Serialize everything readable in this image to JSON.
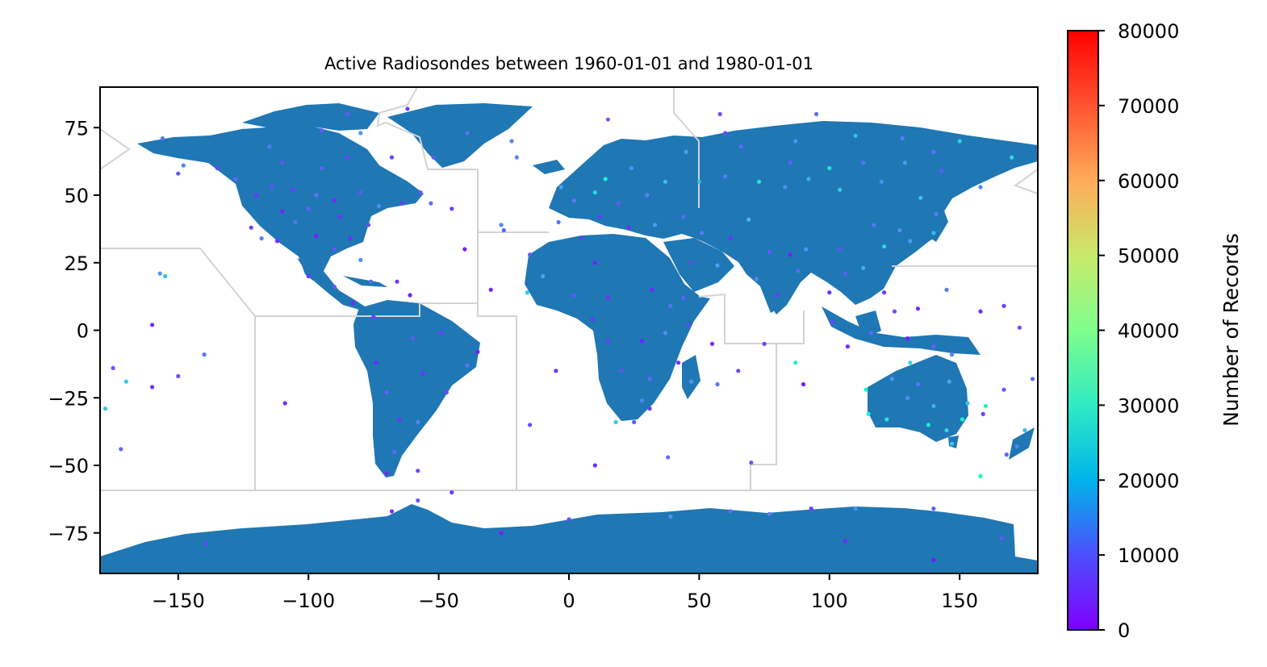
{
  "chart_data": {
    "type": "scatter",
    "title": "Active Radiosondes between 1960-01-01 and 1980-01-01",
    "xlabel": "",
    "ylabel": "",
    "xlim": [
      -180,
      180
    ],
    "ylim": [
      -90,
      90
    ],
    "xticks": [
      -150,
      -100,
      -50,
      0,
      50,
      100,
      150
    ],
    "xtick_labels": [
      "−150",
      "−100",
      "−50",
      "0",
      "50",
      "100",
      "150"
    ],
    "yticks": [
      75,
      50,
      25,
      0,
      -25,
      -50,
      -75
    ],
    "ytick_labels": [
      "75",
      "50",
      "25",
      "0",
      "−25",
      "−50",
      "−75"
    ],
    "grid": false,
    "basemap": "world land polygons (blue fill) with light grey region boundaries",
    "colorbar": {
      "label": "Number of Records",
      "colormap": "rainbow",
      "range": [
        0,
        80000
      ],
      "ticks": [
        0,
        10000,
        20000,
        30000,
        40000,
        50000,
        60000,
        70000,
        80000
      ],
      "tick_labels": [
        "0",
        "10000",
        "20000",
        "30000",
        "40000",
        "50000",
        "60000",
        "70000",
        "80000"
      ]
    },
    "colors": {
      "land": "#1f77b4",
      "boundaries": "#d3d3d3",
      "low": "#7f00ff",
      "mid": "#00b4eb",
      "high": "#ff0000"
    },
    "points": [
      {
        "x": -150,
        "y": 58,
        "v": 9000
      },
      {
        "x": -148,
        "y": 61,
        "v": 14000
      },
      {
        "x": -156,
        "y": 71,
        "v": 12000
      },
      {
        "x": -135,
        "y": 60,
        "v": 7000
      },
      {
        "x": -128,
        "y": 56,
        "v": 11000
      },
      {
        "x": -120,
        "y": 50,
        "v": 5000
      },
      {
        "x": -114,
        "y": 53,
        "v": 8000
      },
      {
        "x": -106,
        "y": 52,
        "v": 6000
      },
      {
        "x": -97,
        "y": 50,
        "v": 12000
      },
      {
        "x": -90,
        "y": 48,
        "v": 4000
      },
      {
        "x": -80,
        "y": 51,
        "v": 9000
      },
      {
        "x": -73,
        "y": 46,
        "v": 15000
      },
      {
        "x": -64,
        "y": 47,
        "v": 6000
      },
      {
        "x": -53,
        "y": 47,
        "v": 11000
      },
      {
        "x": -95,
        "y": 60,
        "v": 10000
      },
      {
        "x": -85,
        "y": 64,
        "v": 7000
      },
      {
        "x": -110,
        "y": 62,
        "v": 8500
      },
      {
        "x": -115,
        "y": 68,
        "v": 13000
      },
      {
        "x": -95,
        "y": 74,
        "v": 9000
      },
      {
        "x": -80,
        "y": 73,
        "v": 16000
      },
      {
        "x": -68,
        "y": 64,
        "v": 7000
      },
      {
        "x": -122,
        "y": 38,
        "v": 6000
      },
      {
        "x": -118,
        "y": 34,
        "v": 14000
      },
      {
        "x": -112,
        "y": 33,
        "v": 5000
      },
      {
        "x": -105,
        "y": 40,
        "v": 12000
      },
      {
        "x": -97,
        "y": 35,
        "v": 3000
      },
      {
        "x": -90,
        "y": 30,
        "v": 9000
      },
      {
        "x": -84,
        "y": 34,
        "v": 4000
      },
      {
        "x": -80,
        "y": 26,
        "v": 15000
      },
      {
        "x": -77,
        "y": 39,
        "v": 8000
      },
      {
        "x": -88,
        "y": 42,
        "v": 5000
      },
      {
        "x": -100,
        "y": 45,
        "v": 10000
      },
      {
        "x": -110,
        "y": 44,
        "v": 3500
      },
      {
        "x": -100,
        "y": 20,
        "v": 6000
      },
      {
        "x": -90,
        "y": 16,
        "v": 9000
      },
      {
        "x": -83,
        "y": 10,
        "v": 4000
      },
      {
        "x": -76,
        "y": 18,
        "v": 11000
      },
      {
        "x": -66,
        "y": 18,
        "v": 6000
      },
      {
        "x": -61,
        "y": 13,
        "v": 3000
      },
      {
        "x": -155,
        "y": 20,
        "v": 21000
      },
      {
        "x": -157,
        "y": 21,
        "v": 16000
      },
      {
        "x": -175,
        "y": -14,
        "v": 9000
      },
      {
        "x": -170,
        "y": -19,
        "v": 22000
      },
      {
        "x": -160,
        "y": -21,
        "v": 5000
      },
      {
        "x": -150,
        "y": -17,
        "v": 8000
      },
      {
        "x": -140,
        "y": -9,
        "v": 12000
      },
      {
        "x": -160,
        "y": 2,
        "v": 4000
      },
      {
        "x": -172,
        "y": -44,
        "v": 11000
      },
      {
        "x": -178,
        "y": -29,
        "v": 23000
      },
      {
        "x": -109,
        "y": -27,
        "v": 4000
      },
      {
        "x": -57,
        "y": 51,
        "v": 9000
      },
      {
        "x": -75,
        "y": 5,
        "v": 6000
      },
      {
        "x": -74,
        "y": -12,
        "v": 4000
      },
      {
        "x": -70,
        "y": -23,
        "v": 10000
      },
      {
        "x": -65,
        "y": -33,
        "v": 5000
      },
      {
        "x": -58,
        "y": -34,
        "v": 14000
      },
      {
        "x": -47,
        "y": -23,
        "v": 8000
      },
      {
        "x": -39,
        "y": -13,
        "v": 12000
      },
      {
        "x": -35,
        "y": -8,
        "v": 3000
      },
      {
        "x": -49,
        "y": -1,
        "v": 6000
      },
      {
        "x": -60,
        "y": -3,
        "v": 9000
      },
      {
        "x": -56,
        "y": -16,
        "v": 5000
      },
      {
        "x": -67,
        "y": -45,
        "v": 11000
      },
      {
        "x": -70,
        "y": -53,
        "v": 4000
      },
      {
        "x": -58,
        "y": -52,
        "v": 7000
      },
      {
        "x": -45,
        "y": -60,
        "v": 6000
      },
      {
        "x": -20,
        "y": 64,
        "v": 14000
      },
      {
        "x": -15,
        "y": 28,
        "v": 9000
      },
      {
        "x": -25,
        "y": 37,
        "v": 10000
      },
      {
        "x": -3,
        "y": 53,
        "v": 18000
      },
      {
        "x": 2,
        "y": 48,
        "v": 13000
      },
      {
        "x": 10,
        "y": 51,
        "v": 25000
      },
      {
        "x": 14,
        "y": 56,
        "v": 31000
      },
      {
        "x": 24,
        "y": 60,
        "v": 16000
      },
      {
        "x": 37,
        "y": 55,
        "v": 22000
      },
      {
        "x": 30,
        "y": 50,
        "v": 14000
      },
      {
        "x": 19,
        "y": 47,
        "v": 9000
      },
      {
        "x": 12,
        "y": 42,
        "v": 6000
      },
      {
        "x": -4,
        "y": 40,
        "v": 12000
      },
      {
        "x": 23,
        "y": 38,
        "v": 4000
      },
      {
        "x": 33,
        "y": 39,
        "v": 17000
      },
      {
        "x": 44,
        "y": 42,
        "v": 11000
      },
      {
        "x": 50,
        "y": 55,
        "v": 20000
      },
      {
        "x": 60,
        "y": 57,
        "v": 13000
      },
      {
        "x": 73,
        "y": 55,
        "v": 28000
      },
      {
        "x": 83,
        "y": 53,
        "v": 15000
      },
      {
        "x": 92,
        "y": 56,
        "v": 19000
      },
      {
        "x": 104,
        "y": 52,
        "v": 24000
      },
      {
        "x": 113,
        "y": 62,
        "v": 12000
      },
      {
        "x": 129,
        "y": 62,
        "v": 17000
      },
      {
        "x": 135,
        "y": 49,
        "v": 22000
      },
      {
        "x": 143,
        "y": 59,
        "v": 9000
      },
      {
        "x": 158,
        "y": 53,
        "v": 14000
      },
      {
        "x": 170,
        "y": 64,
        "v": 26000
      },
      {
        "x": 66,
        "y": 68,
        "v": 11000
      },
      {
        "x": 87,
        "y": 70,
        "v": 16000
      },
      {
        "x": 110,
        "y": 72,
        "v": 21000
      },
      {
        "x": 128,
        "y": 71,
        "v": 13000
      },
      {
        "x": 150,
        "y": 70,
        "v": 24000
      },
      {
        "x": 60,
        "y": 73,
        "v": 8000
      },
      {
        "x": 45,
        "y": 66,
        "v": 18000
      },
      {
        "x": 85,
        "y": 62,
        "v": 10000
      },
      {
        "x": 100,
        "y": 60,
        "v": 27000
      },
      {
        "x": 120,
        "y": 55,
        "v": 15000
      },
      {
        "x": 140,
        "y": 66,
        "v": 12000
      },
      {
        "x": 5,
        "y": 34,
        "v": 6000
      },
      {
        "x": 10,
        "y": 25,
        "v": 3000
      },
      {
        "x": -10,
        "y": 20,
        "v": 18000
      },
      {
        "x": -16,
        "y": 14,
        "v": 24000
      },
      {
        "x": 2,
        "y": 13,
        "v": 9000
      },
      {
        "x": 15,
        "y": 12,
        "v": 5000
      },
      {
        "x": 32,
        "y": 15,
        "v": 4000
      },
      {
        "x": 39,
        "y": 9,
        "v": 12000
      },
      {
        "x": 46,
        "y": 2,
        "v": 7000
      },
      {
        "x": 37,
        "y": -1,
        "v": 15000
      },
      {
        "x": 28,
        "y": -4,
        "v": 3000
      },
      {
        "x": 15,
        "y": -4,
        "v": 6000
      },
      {
        "x": 9,
        "y": 4,
        "v": 5000
      },
      {
        "x": 20,
        "y": -15,
        "v": 8000
      },
      {
        "x": 31,
        "y": -18,
        "v": 11000
      },
      {
        "x": 28,
        "y": -26,
        "v": 14000
      },
      {
        "x": 18,
        "y": -34,
        "v": 22000
      },
      {
        "x": 25,
        "y": -34,
        "v": 9000
      },
      {
        "x": 31,
        "y": -29,
        "v": 6000
      },
      {
        "x": 47,
        "y": -19,
        "v": 16000
      },
      {
        "x": 57,
        "y": -20,
        "v": 12000
      },
      {
        "x": 55,
        "y": -5,
        "v": 4000
      },
      {
        "x": 44,
        "y": 12,
        "v": 10000
      },
      {
        "x": 47,
        "y": 25,
        "v": 7000
      },
      {
        "x": 57,
        "y": 24,
        "v": 18000
      },
      {
        "x": 51,
        "y": 36,
        "v": 13000
      },
      {
        "x": 62,
        "y": 34,
        "v": 5000
      },
      {
        "x": 69,
        "y": 41,
        "v": 21000
      },
      {
        "x": 77,
        "y": 29,
        "v": 9000
      },
      {
        "x": 72,
        "y": 19,
        "v": 14000
      },
      {
        "x": 80,
        "y": 13,
        "v": 6000
      },
      {
        "x": 88,
        "y": 22,
        "v": 11000
      },
      {
        "x": 85,
        "y": 28,
        "v": 3000
      },
      {
        "x": 91,
        "y": 30,
        "v": 16000
      },
      {
        "x": 104,
        "y": 30,
        "v": 8000
      },
      {
        "x": 113,
        "y": 23,
        "v": 19000
      },
      {
        "x": 117,
        "y": 39,
        "v": 12000
      },
      {
        "x": 121,
        "y": 31,
        "v": 25000
      },
      {
        "x": 127,
        "y": 37,
        "v": 15000
      },
      {
        "x": 140,
        "y": 36,
        "v": 20000
      },
      {
        "x": 141,
        "y": 43,
        "v": 13000
      },
      {
        "x": 131,
        "y": 33,
        "v": 17000
      },
      {
        "x": 100,
        "y": 14,
        "v": 5000
      },
      {
        "x": 106,
        "y": 21,
        "v": 9000
      },
      {
        "x": 101,
        "y": 3,
        "v": 7000
      },
      {
        "x": 107,
        "y": -6,
        "v": 4000
      },
      {
        "x": 116,
        "y": -1,
        "v": 11000
      },
      {
        "x": 121,
        "y": 14,
        "v": 6000
      },
      {
        "x": 125,
        "y": 7,
        "v": 9000
      },
      {
        "x": 130,
        "y": -3,
        "v": 3000
      },
      {
        "x": 140,
        "y": -6,
        "v": 10000
      },
      {
        "x": 147,
        "y": -9,
        "v": 14000
      },
      {
        "x": 134,
        "y": 8,
        "v": 5000
      },
      {
        "x": 145,
        "y": 15,
        "v": 12000
      },
      {
        "x": 158,
        "y": 7,
        "v": 4000
      },
      {
        "x": 167,
        "y": 9,
        "v": 6000
      },
      {
        "x": 173,
        "y": 1,
        "v": 8000
      },
      {
        "x": 178,
        "y": -18,
        "v": 11000
      },
      {
        "x": 167,
        "y": -22,
        "v": 9000
      },
      {
        "x": 159,
        "y": -31,
        "v": 7000
      },
      {
        "x": 115,
        "y": -31,
        "v": 32000
      },
      {
        "x": 122,
        "y": -33,
        "v": 28000
      },
      {
        "x": 130,
        "y": -25,
        "v": 15000
      },
      {
        "x": 138,
        "y": -35,
        "v": 30000
      },
      {
        "x": 145,
        "y": -37,
        "v": 26000
      },
      {
        "x": 151,
        "y": -33,
        "v": 34000
      },
      {
        "x": 153,
        "y": -27,
        "v": 22000
      },
      {
        "x": 146,
        "y": -19,
        "v": 18000
      },
      {
        "x": 131,
        "y": -12,
        "v": 27000
      },
      {
        "x": 124,
        "y": -18,
        "v": 16000
      },
      {
        "x": 114,
        "y": -22,
        "v": 36000
      },
      {
        "x": 134,
        "y": -20,
        "v": 12000
      },
      {
        "x": 140,
        "y": -28,
        "v": 20000
      },
      {
        "x": 147,
        "y": -42,
        "v": 24000
      },
      {
        "x": 172,
        "y": -43,
        "v": 14000
      },
      {
        "x": 175,
        "y": -37,
        "v": 21000
      },
      {
        "x": 168,
        "y": -46,
        "v": 10000
      },
      {
        "x": 158,
        "y": -54,
        "v": 42000
      },
      {
        "x": 160,
        "y": -28,
        "v": 44000
      },
      {
        "x": 87,
        "y": -12,
        "v": 33000
      },
      {
        "x": -58,
        "y": -63,
        "v": 9000
      },
      {
        "x": -68,
        "y": -67,
        "v": 5000
      },
      {
        "x": -26,
        "y": -75,
        "v": 3000
      },
      {
        "x": 0,
        "y": -70,
        "v": 8000
      },
      {
        "x": 39,
        "y": -69,
        "v": 16000
      },
      {
        "x": 62,
        "y": -67,
        "v": 11000
      },
      {
        "x": 77,
        "y": -68,
        "v": 13000
      },
      {
        "x": 93,
        "y": -66,
        "v": 6000
      },
      {
        "x": 110,
        "y": -66,
        "v": 15000
      },
      {
        "x": 140,
        "y": -66,
        "v": 10000
      },
      {
        "x": 166,
        "y": -77,
        "v": 9000
      },
      {
        "x": 106,
        "y": -78,
        "v": 4000
      },
      {
        "x": -139,
        "y": -79,
        "v": 7000
      },
      {
        "x": 140,
        "y": -85,
        "v": 2000
      },
      {
        "x": -39,
        "y": 73,
        "v": 12000
      },
      {
        "x": -52,
        "y": 64,
        "v": 9000
      },
      {
        "x": -22,
        "y": 70,
        "v": 14000
      },
      {
        "x": 15,
        "y": 78,
        "v": 10000
      },
      {
        "x": 58,
        "y": 80,
        "v": 8000
      },
      {
        "x": 95,
        "y": 80,
        "v": 11000
      },
      {
        "x": -62,
        "y": 82,
        "v": 6000
      },
      {
        "x": -85,
        "y": 80,
        "v": 9000
      },
      {
        "x": -40,
        "y": 30,
        "v": 3000
      },
      {
        "x": -45,
        "y": 45,
        "v": 6000
      },
      {
        "x": -30,
        "y": 15,
        "v": 4000
      },
      {
        "x": -5,
        "y": -15,
        "v": 5000
      },
      {
        "x": -15,
        "y": -35,
        "v": 7000
      },
      {
        "x": 10,
        "y": -50,
        "v": 4000
      },
      {
        "x": 38,
        "y": -47,
        "v": 12000
      },
      {
        "x": 70,
        "y": -49,
        "v": 9000
      },
      {
        "x": 90,
        "y": -20,
        "v": 3000
      },
      {
        "x": 75,
        "y": -5,
        "v": 6000
      },
      {
        "x": 65,
        "y": -15,
        "v": 8000
      },
      {
        "x": 42,
        "y": -12,
        "v": 5000
      },
      {
        "x": -26,
        "y": 39,
        "v": 14000
      }
    ]
  }
}
